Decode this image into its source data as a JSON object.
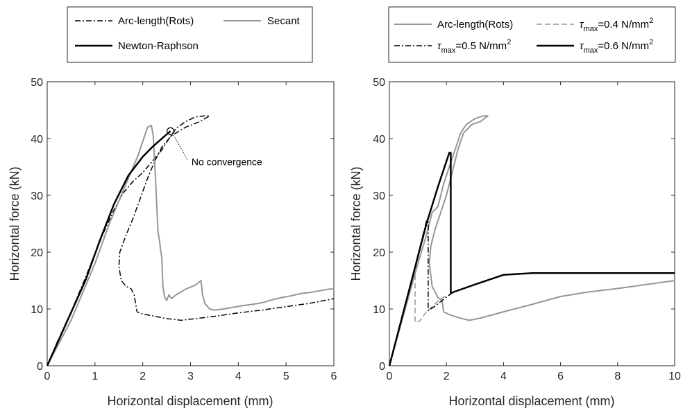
{
  "chart_data": [
    {
      "type": "line",
      "xlabel": "Horizontal displacement (mm)",
      "ylabel": "Horizontal force (kN)",
      "xlim": [
        0,
        6
      ],
      "ylim": [
        0,
        50
      ],
      "xticks": [
        "0",
        "1",
        "2",
        "3",
        "4",
        "5",
        "6"
      ],
      "yticks": [
        "0",
        "10",
        "20",
        "30",
        "40",
        "50"
      ],
      "grid": false,
      "legend_position": "top (outside)",
      "annotations": [
        {
          "text": "No convergence",
          "x": 3.02,
          "y": 35.3,
          "point": [
            2.58,
            41.3
          ]
        }
      ],
      "series": [
        {
          "name": "Arc-length(Rots)",
          "color": "#000000",
          "style": "dashdot",
          "width": 1.5,
          "points": [
            [
              0,
              0
            ],
            [
              0.2,
              4
            ],
            [
              0.5,
              9.5
            ],
            [
              0.8,
              15.5
            ],
            [
              1.0,
              19.8
            ],
            [
              1.2,
              23.8
            ],
            [
              1.4,
              27.5
            ],
            [
              1.6,
              30.5
            ],
            [
              1.8,
              32.5
            ],
            [
              2.0,
              34
            ],
            [
              2.2,
              36
            ],
            [
              2.4,
              38
            ],
            [
              2.55,
              40
            ],
            [
              2.7,
              41.8
            ],
            [
              2.9,
              43
            ],
            [
              3.1,
              43.8
            ],
            [
              3.3,
              44
            ],
            [
              3.4,
              44
            ],
            [
              3.2,
              43
            ],
            [
              2.9,
              42
            ],
            [
              2.6,
              40.5
            ],
            [
              2.4,
              38.5
            ],
            [
              2.25,
              36
            ],
            [
              2.1,
              33
            ],
            [
              1.95,
              29.5
            ],
            [
              1.8,
              26
            ],
            [
              1.65,
              23
            ],
            [
              1.52,
              20
            ],
            [
              1.5,
              17.5
            ],
            [
              1.55,
              15
            ],
            [
              1.65,
              14
            ],
            [
              1.75,
              13.6
            ],
            [
              1.82,
              12.5
            ],
            [
              1.85,
              11
            ],
            [
              1.88,
              9.5
            ],
            [
              2.0,
              9.1
            ],
            [
              2.2,
              8.8
            ],
            [
              2.5,
              8.3
            ],
            [
              2.8,
              8.0
            ],
            [
              3.0,
              8.2
            ],
            [
              3.5,
              8.7
            ],
            [
              4.0,
              9.3
            ],
            [
              4.5,
              9.8
            ],
            [
              5.0,
              10.4
            ],
            [
              5.5,
              11.0
            ],
            [
              6.0,
              11.8
            ]
          ]
        },
        {
          "name": "Secant",
          "color": "#969696",
          "style": "solid",
          "width": 2,
          "points": [
            [
              0,
              0
            ],
            [
              0.5,
              8
            ],
            [
              1.0,
              18
            ],
            [
              1.3,
              25
            ],
            [
              1.6,
              31
            ],
            [
              1.9,
              37
            ],
            [
              2.1,
              42
            ],
            [
              2.18,
              42.3
            ],
            [
              2.22,
              40.5
            ],
            [
              2.26,
              34
            ],
            [
              2.3,
              27
            ],
            [
              2.32,
              23.5
            ],
            [
              2.35,
              22
            ],
            [
              2.38,
              20
            ],
            [
              2.4,
              19
            ],
            [
              2.42,
              14
            ],
            [
              2.44,
              13
            ],
            [
              2.46,
              12
            ],
            [
              2.5,
              11.5
            ],
            [
              2.55,
              12.5
            ],
            [
              2.6,
              11.8
            ],
            [
              2.7,
              12.5
            ],
            [
              2.9,
              13.5
            ],
            [
              3.1,
              14.2
            ],
            [
              3.22,
              15
            ],
            [
              3.25,
              12.5
            ],
            [
              3.3,
              11
            ],
            [
              3.4,
              10
            ],
            [
              3.5,
              9.8
            ],
            [
              3.7,
              10
            ],
            [
              3.9,
              10.3
            ],
            [
              4.1,
              10.6
            ],
            [
              4.3,
              10.8
            ],
            [
              4.5,
              11.1
            ],
            [
              4.7,
              11.6
            ],
            [
              4.9,
              12
            ],
            [
              5.1,
              12.3
            ],
            [
              5.3,
              12.7
            ],
            [
              5.5,
              12.9
            ],
            [
              5.7,
              13.2
            ],
            [
              5.9,
              13.5
            ],
            [
              6.0,
              13.5
            ]
          ]
        },
        {
          "name": "Newton-Raphson",
          "color": "#000000",
          "style": "solid",
          "width": 2.5,
          "points": [
            [
              0,
              0
            ],
            [
              0.4,
              7.5
            ],
            [
              0.8,
              15
            ],
            [
              1.1,
              22
            ],
            [
              1.4,
              28.5
            ],
            [
              1.7,
              33.5
            ],
            [
              2.0,
              36.8
            ],
            [
              2.2,
              38.5
            ],
            [
              2.4,
              40
            ],
            [
              2.58,
              41.3
            ]
          ]
        }
      ]
    },
    {
      "type": "line",
      "xlabel": "Horizontal displacement (mm)",
      "ylabel": "Horizontal force (kN)",
      "xlim": [
        0,
        10
      ],
      "ylim": [
        0,
        50
      ],
      "xticks": [
        "0",
        "2",
        "4",
        "6",
        "8",
        "10"
      ],
      "yticks": [
        "0",
        "10",
        "20",
        "30",
        "40",
        "50"
      ],
      "grid": false,
      "legend_position": "top (outside)",
      "series": [
        {
          "name": "Arc-length(Rots)",
          "color": "#969696",
          "style": "solid",
          "width": 2,
          "points": [
            [
              0,
              0
            ],
            [
              0.5,
              9
            ],
            [
              1.0,
              18
            ],
            [
              1.3,
              23
            ],
            [
              1.5,
              27
            ],
            [
              1.7,
              28
            ],
            [
              1.9,
              32
            ],
            [
              2.1,
              35
            ],
            [
              2.3,
              38
            ],
            [
              2.5,
              41
            ],
            [
              2.7,
              42.5
            ],
            [
              3.0,
              43.5
            ],
            [
              3.3,
              44
            ],
            [
              3.45,
              44
            ],
            [
              3.2,
              43
            ],
            [
              2.9,
              42.5
            ],
            [
              2.6,
              41
            ],
            [
              2.4,
              38
            ],
            [
              2.2,
              34
            ],
            [
              2.0,
              30
            ],
            [
              1.8,
              27
            ],
            [
              1.6,
              24
            ],
            [
              1.45,
              21
            ],
            [
              1.4,
              18
            ],
            [
              1.5,
              14
            ],
            [
              1.7,
              12
            ],
            [
              1.85,
              11.5
            ],
            [
              1.9,
              9.5
            ],
            [
              2.1,
              9.0
            ],
            [
              2.4,
              8.5
            ],
            [
              2.8,
              8.0
            ],
            [
              3.2,
              8.4
            ],
            [
              4.0,
              9.5
            ],
            [
              5.0,
              10.8
            ],
            [
              6.0,
              12.2
            ],
            [
              7.0,
              13.0
            ],
            [
              8.0,
              13.6
            ],
            [
              9.0,
              14.3
            ],
            [
              10.0,
              15
            ]
          ]
        },
        {
          "name": "τmax=0.4 N/mm2",
          "color": "#969696",
          "style": "dashed",
          "width": 1.5,
          "points": [
            [
              0,
              0
            ],
            [
              0.45,
              8.5
            ],
            [
              0.75,
              14
            ],
            [
              0.9,
              16.5
            ],
            [
              0.9,
              7.7
            ],
            [
              1.05,
              7.8
            ],
            [
              1.3,
              9.5
            ],
            [
              1.8,
              11.8
            ],
            [
              2.2,
              12.8
            ]
          ]
        },
        {
          "name": "τmax=0.5 N/mm2",
          "color": "#000000",
          "style": "dashdot",
          "width": 1.5,
          "points": [
            [
              0,
              0
            ],
            [
              0.6,
              11.5
            ],
            [
              1.0,
              19.5
            ],
            [
              1.3,
              25.5
            ],
            [
              1.36,
              25.5
            ],
            [
              1.36,
              9.7
            ],
            [
              1.6,
              10.5
            ],
            [
              1.9,
              11.7
            ],
            [
              2.2,
              12.8
            ]
          ]
        },
        {
          "name": "τmax=0.6 N/mm2",
          "color": "#000000",
          "style": "solid",
          "width": 2.5,
          "points": [
            [
              0,
              0
            ],
            [
              0.7,
              13.5
            ],
            [
              1.3,
              25
            ],
            [
              1.7,
              31.5
            ],
            [
              2.1,
              37.5
            ],
            [
              2.15,
              37.5
            ],
            [
              2.15,
              12.8
            ],
            [
              3.0,
              14.3
            ],
            [
              4.0,
              16.0
            ],
            [
              5.0,
              16.3
            ],
            [
              10.0,
              16.3
            ]
          ]
        }
      ]
    }
  ],
  "legends": {
    "left": [
      "Arc-length(Rots)",
      "Secant",
      "Newton-Raphson"
    ],
    "right": {
      "arc": "Arc-length(Rots)",
      "tau_symbol": "τ",
      "tau_sub": "max",
      "t04": "=0.4 N/mm",
      "t05": "=0.5 N/mm",
      "t06": "=0.6 N/mm",
      "sup": "2"
    }
  }
}
